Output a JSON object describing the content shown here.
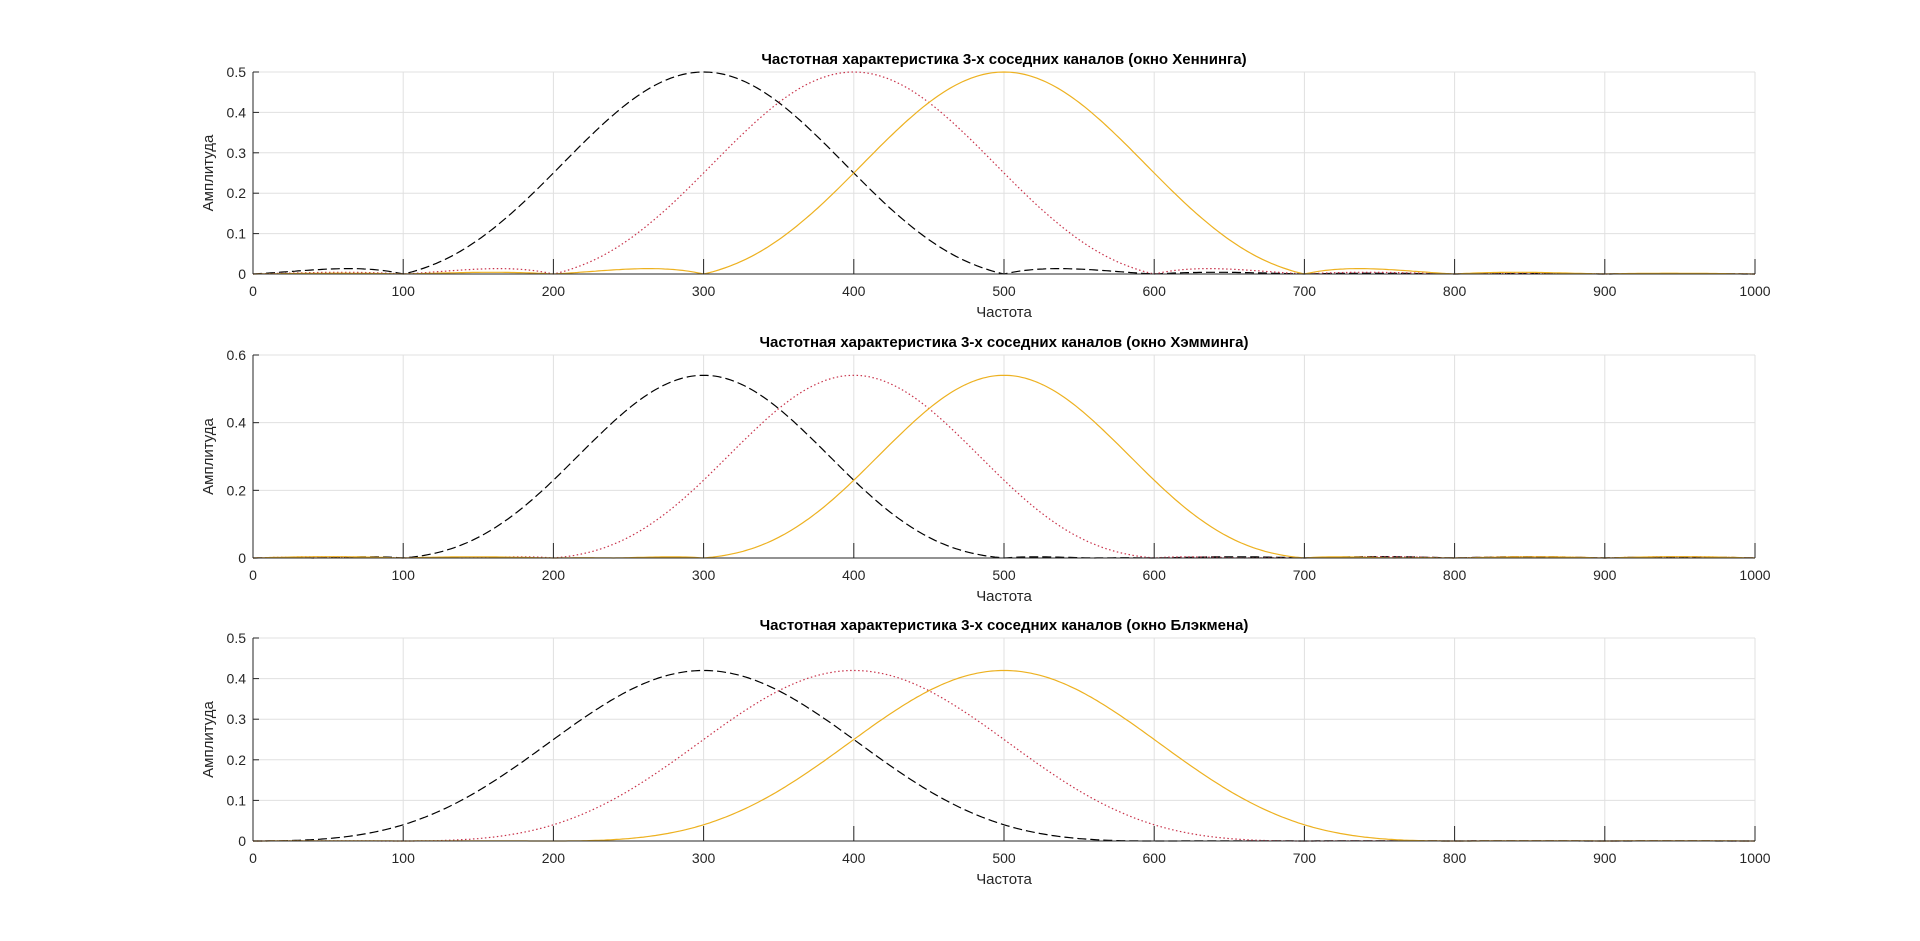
{
  "chart_data": [
    {
      "type": "line",
      "title": "Частотная характеристика 3-х соседних каналов (окно Хеннинга)",
      "xlabel": "Частота",
      "ylabel": "Амплитуда",
      "xlim": [
        0,
        1000
      ],
      "ylim": [
        0,
        0.5
      ],
      "xticks": [
        "0",
        "100",
        "200",
        "300",
        "400",
        "500",
        "600",
        "700",
        "800",
        "900",
        "1000"
      ],
      "yticks": [
        "0",
        "0.1",
        "0.2",
        "0.3",
        "0.4",
        "0.5"
      ],
      "grid": true,
      "window": "hann",
      "series": [
        {
          "center": 300,
          "peak": 0.5,
          "halfwidth": 200,
          "color": "#000000",
          "style": "dashed"
        },
        {
          "center": 400,
          "peak": 0.5,
          "halfwidth": 200,
          "color": "#c8324a",
          "style": "dotted"
        },
        {
          "center": 500,
          "peak": 0.5,
          "halfwidth": 200,
          "color": "#edb120",
          "style": "solid"
        }
      ]
    },
    {
      "type": "line",
      "title": "Частотная характеристика 3-х соседних каналов (окно Хэмминга)",
      "xlabel": "Частота",
      "ylabel": "Амплитуда",
      "xlim": [
        0,
        1000
      ],
      "ylim": [
        0,
        0.6
      ],
      "xticks": [
        "0",
        "100",
        "200",
        "300",
        "400",
        "500",
        "600",
        "700",
        "800",
        "900",
        "1000"
      ],
      "yticks": [
        "0",
        "0.2",
        "0.4",
        "0.6"
      ],
      "grid": true,
      "window": "hamming",
      "series": [
        {
          "center": 300,
          "peak": 0.54,
          "halfwidth": 200,
          "color": "#000000",
          "style": "dashed"
        },
        {
          "center": 400,
          "peak": 0.54,
          "halfwidth": 200,
          "color": "#c8324a",
          "style": "dotted"
        },
        {
          "center": 500,
          "peak": 0.54,
          "halfwidth": 200,
          "color": "#edb120",
          "style": "solid"
        }
      ]
    },
    {
      "type": "line",
      "title": "Частотная характеристика 3-х соседних каналов (окно Блэкмена)",
      "xlabel": "Частота",
      "ylabel": "Амплитуда",
      "xlim": [
        0,
        1000
      ],
      "ylim": [
        0,
        0.5
      ],
      "xticks": [
        "0",
        "100",
        "200",
        "300",
        "400",
        "500",
        "600",
        "700",
        "800",
        "900",
        "1000"
      ],
      "yticks": [
        "0",
        "0.1",
        "0.2",
        "0.3",
        "0.4",
        "0.5"
      ],
      "grid": true,
      "window": "blackman",
      "series": [
        {
          "center": 300,
          "peak": 0.42,
          "halfwidth": 300,
          "color": "#000000",
          "style": "dashed"
        },
        {
          "center": 400,
          "peak": 0.42,
          "halfwidth": 300,
          "color": "#c8324a",
          "style": "dotted"
        },
        {
          "center": 500,
          "peak": 0.42,
          "halfwidth": 300,
          "color": "#edb120",
          "style": "solid"
        }
      ]
    }
  ]
}
